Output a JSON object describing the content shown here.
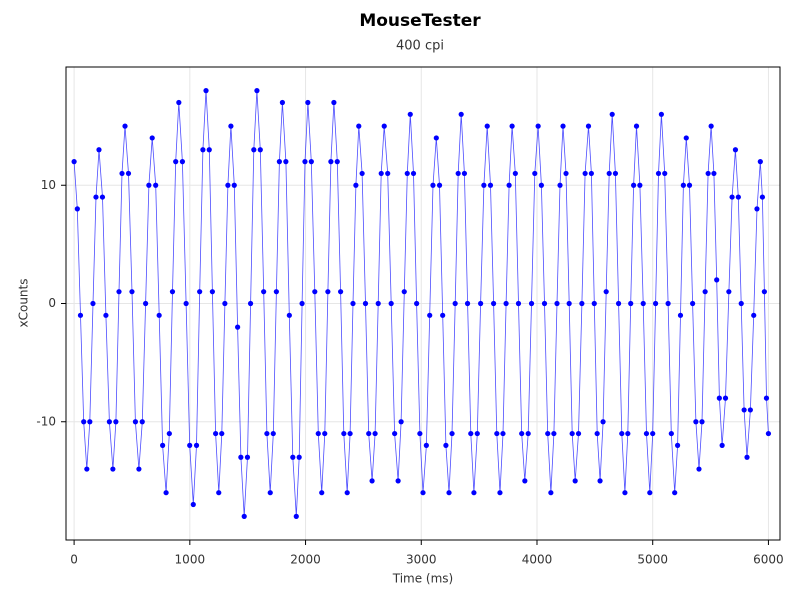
{
  "chart_data": {
    "type": "scatter",
    "title": "MouseTester",
    "subtitle": "400 cpi",
    "x_label": "Time (ms)",
    "y_label": "xCounts",
    "xlim": [
      -70,
      6100
    ],
    "ylim": [
      -20,
      20
    ],
    "xticks": [
      0,
      1000,
      2000,
      3000,
      4000,
      5000,
      6000
    ],
    "yticks": [
      -10,
      0,
      10
    ],
    "grid": true,
    "line": true,
    "series": [
      {
        "color": "#0000ff",
        "x": [
          0,
          28,
          55,
          83,
          110,
          136,
          163,
          189,
          215,
          245,
          275,
          305,
          335,
          361,
          388,
          414,
          440,
          470,
          500,
          530,
          560,
          589,
          618,
          646,
          675,
          705,
          735,
          765,
          795,
          823,
          850,
          878,
          905,
          936,
          968,
          999,
          1030,
          1058,
          1085,
          1113,
          1140,
          1168,
          1195,
          1223,
          1250,
          1276,
          1303,
          1329,
          1355,
          1384,
          1413,
          1441,
          1470,
          1498,
          1525,
          1553,
          1580,
          1609,
          1638,
          1666,
          1695,
          1721,
          1748,
          1774,
          1800,
          1830,
          1860,
          1890,
          1920,
          1945,
          1970,
          1995,
          2020,
          2050,
          2080,
          2110,
          2140,
          2166,
          2193,
          2219,
          2245,
          2274,
          2303,
          2331,
          2360,
          2385,
          2410,
          2435,
          2460,
          2489,
          2518,
          2546,
          2575,
          2601,
          2628,
          2654,
          2680,
          2710,
          2740,
          2770,
          2800,
          2826,
          2853,
          2879,
          2905,
          2933,
          2960,
          2988,
          3015,
          3044,
          3073,
          3101,
          3130,
          3158,
          3185,
          3213,
          3240,
          3266,
          3293,
          3319,
          3345,
          3373,
          3400,
          3428,
          3455,
          3484,
          3513,
          3541,
          3570,
          3598,
          3625,
          3653,
          3680,
          3706,
          3733,
          3759,
          3785,
          3813,
          3840,
          3868,
          3895,
          3924,
          3953,
          3981,
          4010,
          4038,
          4065,
          4093,
          4120,
          4146,
          4173,
          4199,
          4225,
          4251,
          4278,
          4304,
          4330,
          4359,
          4388,
          4416,
          4445,
          4470,
          4495,
          4520,
          4545,
          4571,
          4598,
          4624,
          4650,
          4678,
          4705,
          4733,
          4760,
          4785,
          4810,
          4835,
          4860,
          4889,
          4918,
          4946,
          4975,
          5000,
          5025,
          5050,
          5075,
          5104,
          5133,
          5161,
          5190,
          5215,
          5240,
          5265,
          5290,
          5318,
          5345,
          5373,
          5400,
          5426,
          5453,
          5479,
          5505,
          5529,
          5553,
          5576,
          5600,
          5629,
          5658,
          5686,
          5715,
          5740,
          5765,
          5790,
          5815,
          5844,
          5873,
          5901,
          5930,
          5948,
          5965,
          5983,
          6000
        ],
        "values": [
          12,
          8,
          -1,
          -10,
          -14,
          -10,
          0,
          9,
          13,
          9,
          -1,
          -10,
          -14,
          -10,
          1,
          11,
          15,
          11,
          1,
          -10,
          -14,
          -10,
          0,
          10,
          14,
          10,
          -1,
          -12,
          -16,
          -11,
          1,
          12,
          17,
          12,
          0,
          -12,
          -17,
          -12,
          1,
          13,
          18,
          13,
          1,
          -11,
          -16,
          -11,
          0,
          10,
          15,
          10,
          -2,
          -13,
          -18,
          -13,
          0,
          13,
          18,
          13,
          1,
          -11,
          -16,
          -11,
          1,
          12,
          17,
          12,
          -1,
          -13,
          -18,
          -13,
          0,
          12,
          17,
          12,
          1,
          -11,
          -16,
          -11,
          1,
          12,
          17,
          12,
          1,
          -11,
          -16,
          -11,
          0,
          10,
          15,
          11,
          0,
          -11,
          -15,
          -11,
          0,
          11,
          15,
          11,
          0,
          -11,
          -15,
          -10,
          1,
          11,
          16,
          11,
          0,
          -11,
          -16,
          -12,
          -1,
          10,
          14,
          10,
          -1,
          -12,
          -16,
          -11,
          0,
          11,
          16,
          11,
          0,
          -11,
          -16,
          -11,
          0,
          10,
          15,
          10,
          0,
          -11,
          -16,
          -11,
          0,
          10,
          15,
          11,
          0,
          -11,
          -15,
          -11,
          0,
          11,
          15,
          10,
          0,
          -11,
          -16,
          -11,
          0,
          10,
          15,
          11,
          0,
          -11,
          -15,
          -11,
          0,
          11,
          15,
          11,
          0,
          -11,
          -15,
          -10,
          1,
          11,
          16,
          11,
          0,
          -11,
          -16,
          -11,
          0,
          10,
          15,
          10,
          0,
          -11,
          -16,
          -11,
          0,
          11,
          16,
          11,
          0,
          -11,
          -16,
          -12,
          -1,
          10,
          14,
          10,
          0,
          -10,
          -14,
          -10,
          1,
          11,
          15,
          11,
          2,
          -8,
          -12,
          -8,
          1,
          9,
          13,
          9,
          0,
          -9,
          -13,
          -9,
          -1,
          8,
          12,
          9,
          1,
          -8,
          -11
        ]
      }
    ]
  }
}
